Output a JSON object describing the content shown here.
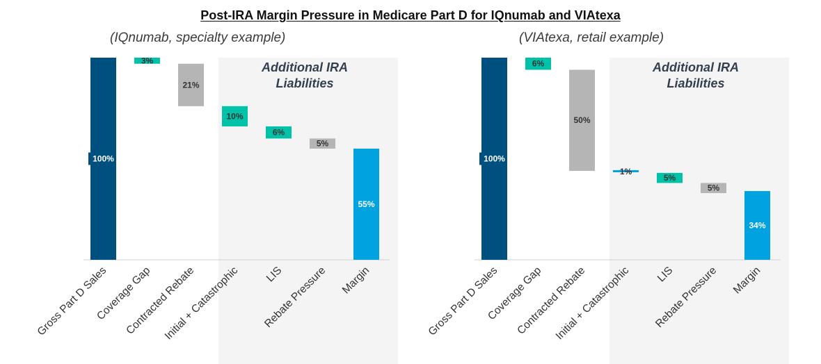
{
  "title": "Post-IRA Margin Pressure in Medicare Part D for IQnumab and VIAtexa",
  "colors": {
    "gross": "#00507f",
    "teal": "#00c2a8",
    "gray": "#b5b5b5",
    "margin": "#00a2e0",
    "shade": "#f4f4f4"
  },
  "chart_data": [
    {
      "type": "bar",
      "subtitle": "(IQnumab, specialty example)",
      "shaded_region_label": "Additional IRA Liabilities",
      "categories": [
        "Gross Part D Sales",
        "Coverage Gap",
        "Contracted Rebate",
        "Initial + Catastrophic",
        "LIS",
        "Rebate Pressure",
        "Margin"
      ],
      "values": [
        100,
        3,
        21,
        10,
        6,
        5,
        55
      ],
      "labels": [
        "100%",
        "3%",
        "21%",
        "10%",
        "6%",
        "5%",
        "55%"
      ],
      "kinds": [
        "total",
        "teal",
        "gray",
        "teal",
        "teal",
        "gray",
        "margin"
      ],
      "ylim": [
        0,
        100
      ]
    },
    {
      "type": "bar",
      "subtitle": "(VIAtexa, retail example)",
      "shaded_region_label": "Additional IRA Liabilities",
      "categories": [
        "Gross Part D Sales",
        "Coverage Gap",
        "Contracted Rebate",
        "Initial + Catastrophic",
        "LIS",
        "Rebate Pressure",
        "Margin"
      ],
      "values": [
        100,
        6,
        50,
        1,
        5,
        5,
        34
      ],
      "labels": [
        "100%",
        "6%",
        "50%",
        "1%",
        "5%",
        "5%",
        "34%"
      ],
      "kinds": [
        "total",
        "teal",
        "gray",
        "margin",
        "teal",
        "gray",
        "margin"
      ],
      "ylim": [
        0,
        100
      ]
    }
  ]
}
